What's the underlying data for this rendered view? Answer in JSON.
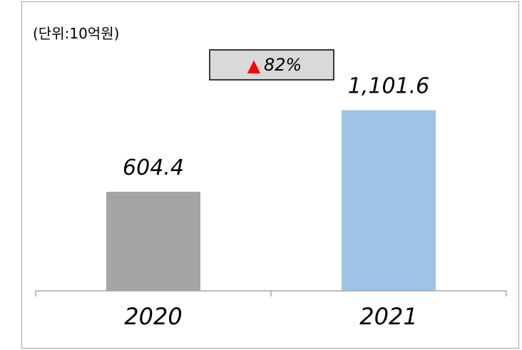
{
  "chart_data": {
    "type": "bar",
    "unit_label": "(단위:10억원)",
    "categories": [
      "2020",
      "2021"
    ],
    "values": [
      604.4,
      1101.6
    ],
    "value_labels": [
      "604.4",
      "1,101.6"
    ],
    "colors": [
      "#a5a5a5",
      "#9dc3e6"
    ],
    "ylim": [
      0,
      1100
    ],
    "grid": false,
    "legend": "none",
    "growth_badge": {
      "symbol": "▲",
      "symbol_color": "#ff0000",
      "text": "82%",
      "background": "#d9d9d9"
    }
  }
}
